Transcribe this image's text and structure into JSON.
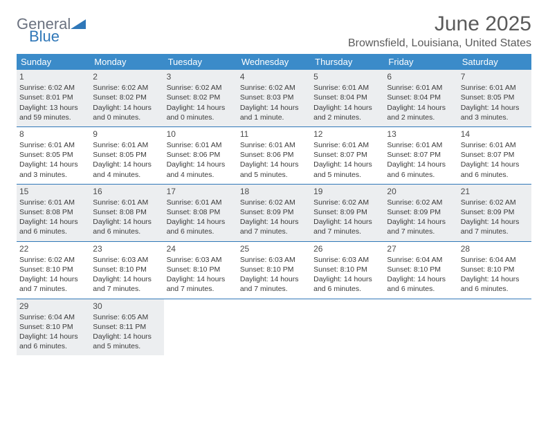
{
  "brand": {
    "line1": "General",
    "line2": "Blue",
    "mark_color": "#2f77b8"
  },
  "title": "June 2025",
  "location": "Brownsfield, Louisiana, United States",
  "colors": {
    "header_bg": "#3b8bc9",
    "header_text": "#ffffff",
    "rule": "#2f77b8",
    "shaded_bg": "#eceef0",
    "text": "#3a3a3a",
    "title_text": "#5a5a5a"
  },
  "day_names": [
    "Sunday",
    "Monday",
    "Tuesday",
    "Wednesday",
    "Thursday",
    "Friday",
    "Saturday"
  ],
  "weeks": [
    [
      {
        "n": "1",
        "shaded": true,
        "sunrise": "Sunrise: 6:02 AM",
        "sunset": "Sunset: 8:01 PM",
        "day1": "Daylight: 13 hours",
        "day2": "and 59 minutes."
      },
      {
        "n": "2",
        "shaded": true,
        "sunrise": "Sunrise: 6:02 AM",
        "sunset": "Sunset: 8:02 PM",
        "day1": "Daylight: 14 hours",
        "day2": "and 0 minutes."
      },
      {
        "n": "3",
        "shaded": true,
        "sunrise": "Sunrise: 6:02 AM",
        "sunset": "Sunset: 8:02 PM",
        "day1": "Daylight: 14 hours",
        "day2": "and 0 minutes."
      },
      {
        "n": "4",
        "shaded": true,
        "sunrise": "Sunrise: 6:02 AM",
        "sunset": "Sunset: 8:03 PM",
        "day1": "Daylight: 14 hours",
        "day2": "and 1 minute."
      },
      {
        "n": "5",
        "shaded": true,
        "sunrise": "Sunrise: 6:01 AM",
        "sunset": "Sunset: 8:04 PM",
        "day1": "Daylight: 14 hours",
        "day2": "and 2 minutes."
      },
      {
        "n": "6",
        "shaded": true,
        "sunrise": "Sunrise: 6:01 AM",
        "sunset": "Sunset: 8:04 PM",
        "day1": "Daylight: 14 hours",
        "day2": "and 2 minutes."
      },
      {
        "n": "7",
        "shaded": true,
        "sunrise": "Sunrise: 6:01 AM",
        "sunset": "Sunset: 8:05 PM",
        "day1": "Daylight: 14 hours",
        "day2": "and 3 minutes."
      }
    ],
    [
      {
        "n": "8",
        "shaded": false,
        "sunrise": "Sunrise: 6:01 AM",
        "sunset": "Sunset: 8:05 PM",
        "day1": "Daylight: 14 hours",
        "day2": "and 3 minutes."
      },
      {
        "n": "9",
        "shaded": false,
        "sunrise": "Sunrise: 6:01 AM",
        "sunset": "Sunset: 8:05 PM",
        "day1": "Daylight: 14 hours",
        "day2": "and 4 minutes."
      },
      {
        "n": "10",
        "shaded": false,
        "sunrise": "Sunrise: 6:01 AM",
        "sunset": "Sunset: 8:06 PM",
        "day1": "Daylight: 14 hours",
        "day2": "and 4 minutes."
      },
      {
        "n": "11",
        "shaded": false,
        "sunrise": "Sunrise: 6:01 AM",
        "sunset": "Sunset: 8:06 PM",
        "day1": "Daylight: 14 hours",
        "day2": "and 5 minutes."
      },
      {
        "n": "12",
        "shaded": false,
        "sunrise": "Sunrise: 6:01 AM",
        "sunset": "Sunset: 8:07 PM",
        "day1": "Daylight: 14 hours",
        "day2": "and 5 minutes."
      },
      {
        "n": "13",
        "shaded": false,
        "sunrise": "Sunrise: 6:01 AM",
        "sunset": "Sunset: 8:07 PM",
        "day1": "Daylight: 14 hours",
        "day2": "and 6 minutes."
      },
      {
        "n": "14",
        "shaded": false,
        "sunrise": "Sunrise: 6:01 AM",
        "sunset": "Sunset: 8:07 PM",
        "day1": "Daylight: 14 hours",
        "day2": "and 6 minutes."
      }
    ],
    [
      {
        "n": "15",
        "shaded": true,
        "sunrise": "Sunrise: 6:01 AM",
        "sunset": "Sunset: 8:08 PM",
        "day1": "Daylight: 14 hours",
        "day2": "and 6 minutes."
      },
      {
        "n": "16",
        "shaded": true,
        "sunrise": "Sunrise: 6:01 AM",
        "sunset": "Sunset: 8:08 PM",
        "day1": "Daylight: 14 hours",
        "day2": "and 6 minutes."
      },
      {
        "n": "17",
        "shaded": true,
        "sunrise": "Sunrise: 6:01 AM",
        "sunset": "Sunset: 8:08 PM",
        "day1": "Daylight: 14 hours",
        "day2": "and 6 minutes."
      },
      {
        "n": "18",
        "shaded": true,
        "sunrise": "Sunrise: 6:02 AM",
        "sunset": "Sunset: 8:09 PM",
        "day1": "Daylight: 14 hours",
        "day2": "and 7 minutes."
      },
      {
        "n": "19",
        "shaded": true,
        "sunrise": "Sunrise: 6:02 AM",
        "sunset": "Sunset: 8:09 PM",
        "day1": "Daylight: 14 hours",
        "day2": "and 7 minutes."
      },
      {
        "n": "20",
        "shaded": true,
        "sunrise": "Sunrise: 6:02 AM",
        "sunset": "Sunset: 8:09 PM",
        "day1": "Daylight: 14 hours",
        "day2": "and 7 minutes."
      },
      {
        "n": "21",
        "shaded": true,
        "sunrise": "Sunrise: 6:02 AM",
        "sunset": "Sunset: 8:09 PM",
        "day1": "Daylight: 14 hours",
        "day2": "and 7 minutes."
      }
    ],
    [
      {
        "n": "22",
        "shaded": false,
        "sunrise": "Sunrise: 6:02 AM",
        "sunset": "Sunset: 8:10 PM",
        "day1": "Daylight: 14 hours",
        "day2": "and 7 minutes."
      },
      {
        "n": "23",
        "shaded": false,
        "sunrise": "Sunrise: 6:03 AM",
        "sunset": "Sunset: 8:10 PM",
        "day1": "Daylight: 14 hours",
        "day2": "and 7 minutes."
      },
      {
        "n": "24",
        "shaded": false,
        "sunrise": "Sunrise: 6:03 AM",
        "sunset": "Sunset: 8:10 PM",
        "day1": "Daylight: 14 hours",
        "day2": "and 7 minutes."
      },
      {
        "n": "25",
        "shaded": false,
        "sunrise": "Sunrise: 6:03 AM",
        "sunset": "Sunset: 8:10 PM",
        "day1": "Daylight: 14 hours",
        "day2": "and 7 minutes."
      },
      {
        "n": "26",
        "shaded": false,
        "sunrise": "Sunrise: 6:03 AM",
        "sunset": "Sunset: 8:10 PM",
        "day1": "Daylight: 14 hours",
        "day2": "and 6 minutes."
      },
      {
        "n": "27",
        "shaded": false,
        "sunrise": "Sunrise: 6:04 AM",
        "sunset": "Sunset: 8:10 PM",
        "day1": "Daylight: 14 hours",
        "day2": "and 6 minutes."
      },
      {
        "n": "28",
        "shaded": false,
        "sunrise": "Sunrise: 6:04 AM",
        "sunset": "Sunset: 8:10 PM",
        "day1": "Daylight: 14 hours",
        "day2": "and 6 minutes."
      }
    ],
    [
      {
        "n": "29",
        "shaded": true,
        "sunrise": "Sunrise: 6:04 AM",
        "sunset": "Sunset: 8:10 PM",
        "day1": "Daylight: 14 hours",
        "day2": "and 6 minutes."
      },
      {
        "n": "30",
        "shaded": true,
        "sunrise": "Sunrise: 6:05 AM",
        "sunset": "Sunset: 8:11 PM",
        "day1": "Daylight: 14 hours",
        "day2": "and 5 minutes."
      },
      {
        "empty": true
      },
      {
        "empty": true
      },
      {
        "empty": true
      },
      {
        "empty": true
      },
      {
        "empty": true
      }
    ]
  ]
}
